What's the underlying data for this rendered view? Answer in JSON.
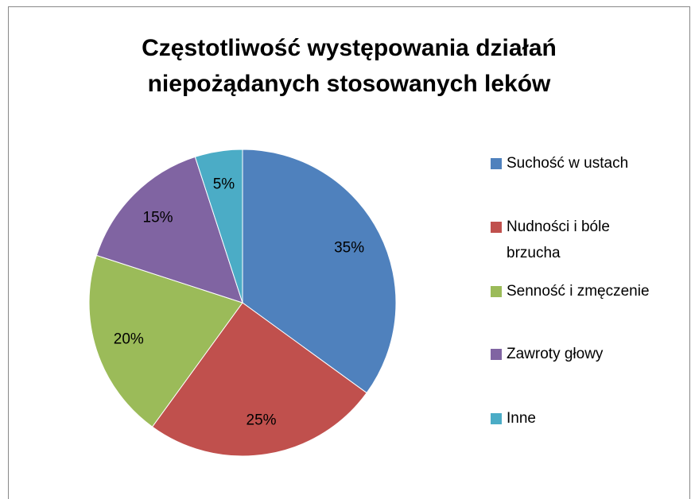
{
  "chart_data": {
    "type": "pie",
    "title": "Częstotliwość występowania działań niepożądanych stosowanych leków",
    "categories": [
      "Suchość w ustach",
      "Nudności i bóle brzucha",
      "Senność i zmęczenie",
      "Zawroty głowy",
      "Inne"
    ],
    "values": [
      35,
      25,
      20,
      15,
      5
    ],
    "value_labels": [
      "35%",
      "25%",
      "20%",
      "15%",
      "5%"
    ],
    "colors": [
      "#4f81bd",
      "#c0504d",
      "#9bbb59",
      "#8064a2",
      "#4bacc6"
    ],
    "legend": "right"
  }
}
